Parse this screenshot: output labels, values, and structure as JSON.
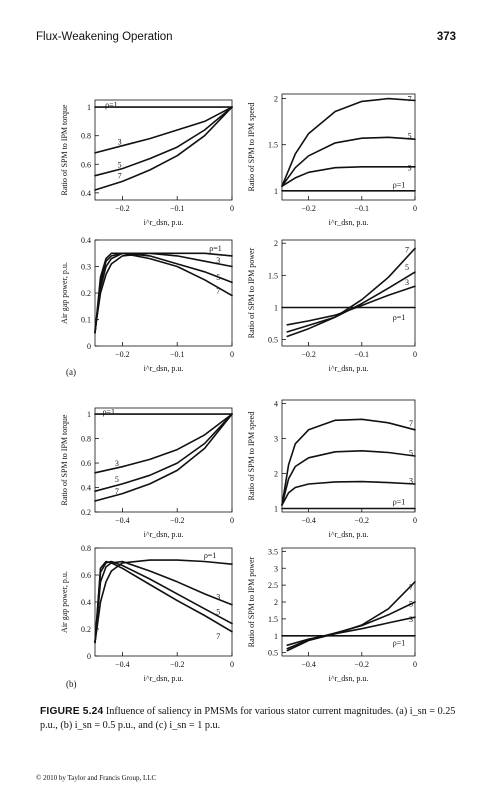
{
  "header": {
    "title": "Flux-Weakening Operation",
    "page_number": "373"
  },
  "panel_labels": {
    "a": "(a)",
    "b": "(b)"
  },
  "caption": {
    "label": "FIGURE 5.24",
    "text": "Influence of saliency in PMSMs for various stator current magnitudes. (a) i_sn = 0.25 p.u., (b) i_sn = 0.5 p.u., and (c) i_sn = 1 p.u."
  },
  "footer": "© 2010 by Taylor and Francis Group, LLC",
  "chart_data": [
    {
      "id": "a-torque",
      "type": "line",
      "ylabel": "Ratio of SPM to IPM torque",
      "xlabel": "i^r_dsn, p.u.",
      "xlim": [
        -0.25,
        0
      ],
      "ylim": [
        0.35,
        1.05
      ],
      "xticks": [
        -0.2,
        -0.1,
        0
      ],
      "xtick_labels": [
        "−0.2",
        "−0.1",
        "0"
      ],
      "yticks": [
        0.4,
        0.6,
        0.8,
        1
      ],
      "ytick_labels": [
        "0.4",
        "0.6",
        "0.8",
        "1"
      ],
      "series": [
        {
          "name": "ρ=1",
          "x": [
            -0.25,
            0
          ],
          "y": [
            1,
            1
          ]
        },
        {
          "name": "3",
          "x": [
            -0.25,
            -0.2,
            -0.15,
            -0.1,
            -0.05,
            0
          ],
          "y": [
            0.68,
            0.73,
            0.78,
            0.84,
            0.9,
            1
          ]
        },
        {
          "name": "5",
          "x": [
            -0.25,
            -0.2,
            -0.15,
            -0.1,
            -0.05,
            0
          ],
          "y": [
            0.52,
            0.57,
            0.64,
            0.72,
            0.84,
            1
          ]
        },
        {
          "name": "7",
          "x": [
            -0.25,
            -0.2,
            -0.15,
            -0.1,
            -0.05,
            0
          ],
          "y": [
            0.42,
            0.48,
            0.56,
            0.66,
            0.8,
            1
          ]
        }
      ],
      "labels": [
        {
          "text": "ρ=1",
          "x": -0.22,
          "y": 1.02
        },
        {
          "text": "3",
          "x": -0.205,
          "y": 0.76
        },
        {
          "text": "5",
          "x": -0.205,
          "y": 0.6
        },
        {
          "text": "7",
          "x": -0.205,
          "y": 0.52
        }
      ]
    },
    {
      "id": "a-speed",
      "type": "line",
      "ylabel": "Ratio of SPM to IPM speed",
      "xlabel": "i^r_dsn, p.u.",
      "xlim": [
        -0.25,
        0
      ],
      "ylim": [
        0.9,
        2.05
      ],
      "xticks": [
        -0.2,
        -0.1,
        0
      ],
      "xtick_labels": [
        "−0.2",
        "−0.1",
        "0"
      ],
      "yticks": [
        1,
        1.5,
        2
      ],
      "ytick_labels": [
        "1",
        "1.5",
        "2"
      ],
      "series": [
        {
          "name": "ρ=1",
          "x": [
            -0.25,
            0
          ],
          "y": [
            1,
            1
          ]
        },
        {
          "name": "3",
          "x": [
            -0.25,
            -0.225,
            -0.2,
            -0.15,
            -0.1,
            -0.05,
            0
          ],
          "y": [
            1.05,
            1.14,
            1.2,
            1.25,
            1.26,
            1.26,
            1.26
          ]
        },
        {
          "name": "5",
          "x": [
            -0.25,
            -0.225,
            -0.2,
            -0.15,
            -0.1,
            -0.05,
            0
          ],
          "y": [
            1.05,
            1.25,
            1.38,
            1.52,
            1.57,
            1.58,
            1.56
          ]
        },
        {
          "name": "7",
          "x": [
            -0.25,
            -0.225,
            -0.2,
            -0.15,
            -0.1,
            -0.05,
            0
          ],
          "y": [
            1.05,
            1.4,
            1.62,
            1.86,
            1.97,
            2.0,
            1.98
          ]
        }
      ],
      "labels": [
        {
          "text": "7",
          "x": -0.01,
          "y": 2.0
        },
        {
          "text": "5",
          "x": -0.01,
          "y": 1.6
        },
        {
          "text": "3",
          "x": -0.01,
          "y": 1.25
        },
        {
          "text": "ρ=1",
          "x": -0.03,
          "y": 1.07
        }
      ]
    },
    {
      "id": "a-power",
      "type": "line",
      "ylabel": "Air gap power, p.u.",
      "xlabel": "i^r_dsn, p.u.",
      "xlim": [
        -0.25,
        0
      ],
      "ylim": [
        0,
        0.4
      ],
      "xticks": [
        -0.2,
        -0.1,
        0
      ],
      "xtick_labels": [
        "−0.2",
        "−0.1",
        "0"
      ],
      "yticks": [
        0,
        0.1,
        0.2,
        0.3,
        0.4
      ],
      "ytick_labels": [
        "0",
        "0.1",
        "0.2",
        "0.3",
        "0.4"
      ],
      "series": [
        {
          "name": "ρ=1",
          "x": [
            -0.25,
            -0.24,
            -0.23,
            -0.22,
            -0.2,
            -0.15,
            -0.1,
            -0.05,
            0
          ],
          "y": [
            0.06,
            0.2,
            0.27,
            0.31,
            0.34,
            0.35,
            0.35,
            0.35,
            0.34
          ]
        },
        {
          "name": "3",
          "x": [
            -0.25,
            -0.24,
            -0.23,
            -0.22,
            -0.2,
            -0.15,
            -0.1,
            -0.05,
            0
          ],
          "y": [
            0.05,
            0.22,
            0.3,
            0.33,
            0.35,
            0.35,
            0.34,
            0.32,
            0.3
          ]
        },
        {
          "name": "5",
          "x": [
            -0.25,
            -0.24,
            -0.23,
            -0.22,
            -0.2,
            -0.15,
            -0.1,
            -0.05,
            0
          ],
          "y": [
            0.05,
            0.24,
            0.32,
            0.34,
            0.35,
            0.34,
            0.31,
            0.28,
            0.24
          ]
        },
        {
          "name": "7",
          "x": [
            -0.25,
            -0.24,
            -0.23,
            -0.22,
            -0.2,
            -0.15,
            -0.1,
            -0.05,
            0
          ],
          "y": [
            0.05,
            0.26,
            0.33,
            0.35,
            0.35,
            0.33,
            0.3,
            0.25,
            0.19
          ]
        }
      ],
      "labels": [
        {
          "text": "ρ=1",
          "x": -0.03,
          "y": 0.37
        },
        {
          "text": "3",
          "x": -0.025,
          "y": 0.325
        },
        {
          "text": "5",
          "x": -0.025,
          "y": 0.26
        },
        {
          "text": "7",
          "x": -0.025,
          "y": 0.21
        }
      ]
    },
    {
      "id": "a-power-ratio",
      "type": "line",
      "ylabel": "Ratio of SPM to IPM power",
      "xlabel": "i^r_dsn, p.u.",
      "xlim": [
        -0.25,
        0
      ],
      "ylim": [
        0.4,
        2.05
      ],
      "xticks": [
        -0.2,
        -0.1,
        0
      ],
      "xtick_labels": [
        "−0.2",
        "−0.1",
        "0"
      ],
      "yticks": [
        0.5,
        1,
        1.5,
        2
      ],
      "ytick_labels": [
        "0.5",
        "1",
        "1.5",
        "2"
      ],
      "series": [
        {
          "name": "ρ=1",
          "x": [
            -0.25,
            0
          ],
          "y": [
            1,
            1
          ]
        },
        {
          "name": "3",
          "x": [
            -0.24,
            -0.2,
            -0.15,
            -0.1,
            -0.05,
            0
          ],
          "y": [
            0.73,
            0.79,
            0.88,
            1.03,
            1.19,
            1.33
          ]
        },
        {
          "name": "5",
          "x": [
            -0.24,
            -0.2,
            -0.15,
            -0.1,
            -0.05,
            0
          ],
          "y": [
            0.62,
            0.72,
            0.85,
            1.06,
            1.3,
            1.55
          ]
        },
        {
          "name": "7",
          "x": [
            -0.24,
            -0.2,
            -0.15,
            -0.1,
            -0.05,
            0
          ],
          "y": [
            0.55,
            0.67,
            0.85,
            1.12,
            1.47,
            1.92
          ]
        }
      ],
      "labels": [
        {
          "text": "7",
          "x": -0.015,
          "y": 1.9
        },
        {
          "text": "5",
          "x": -0.015,
          "y": 1.63
        },
        {
          "text": "3",
          "x": -0.015,
          "y": 1.4
        },
        {
          "text": "ρ=1",
          "x": -0.03,
          "y": 0.85
        }
      ]
    },
    {
      "id": "b-torque",
      "type": "line",
      "ylabel": "Ratio of SPM to IPM torque",
      "xlabel": "i^r_dsn, p.u.",
      "xlim": [
        -0.5,
        0
      ],
      "ylim": [
        0.2,
        1.05
      ],
      "xticks": [
        -0.4,
        -0.2,
        0
      ],
      "xtick_labels": [
        "−0.4",
        "−0.2",
        "0"
      ],
      "yticks": [
        0.2,
        0.4,
        0.6,
        0.8,
        1
      ],
      "ytick_labels": [
        "0.2",
        "0.4",
        "0.6",
        "0.8",
        "1"
      ],
      "series": [
        {
          "name": "ρ=1",
          "x": [
            -0.5,
            0
          ],
          "y": [
            1,
            1
          ]
        },
        {
          "name": "3",
          "x": [
            -0.5,
            -0.4,
            -0.3,
            -0.2,
            -0.1,
            0
          ],
          "y": [
            0.52,
            0.57,
            0.63,
            0.71,
            0.83,
            1
          ]
        },
        {
          "name": "5",
          "x": [
            -0.5,
            -0.4,
            -0.3,
            -0.2,
            -0.1,
            0
          ],
          "y": [
            0.37,
            0.43,
            0.5,
            0.6,
            0.76,
            1
          ]
        },
        {
          "name": "7",
          "x": [
            -0.5,
            -0.4,
            -0.3,
            -0.2,
            -0.1,
            0
          ],
          "y": [
            0.29,
            0.35,
            0.43,
            0.54,
            0.72,
            1
          ]
        }
      ],
      "labels": [
        {
          "text": "ρ=1",
          "x": -0.45,
          "y": 1.02
        },
        {
          "text": "3",
          "x": -0.42,
          "y": 0.6
        },
        {
          "text": "5",
          "x": -0.42,
          "y": 0.47
        },
        {
          "text": "7",
          "x": -0.42,
          "y": 0.37
        }
      ]
    },
    {
      "id": "b-speed",
      "type": "line",
      "ylabel": "Ratio of SPM to IPM speed",
      "xlabel": "i^r_dsn, p.u.",
      "xlim": [
        -0.5,
        0
      ],
      "ylim": [
        0.9,
        4.1
      ],
      "xticks": [
        -0.4,
        -0.2,
        0
      ],
      "xtick_labels": [
        "−0.4",
        "−0.2",
        "0"
      ],
      "yticks": [
        1,
        2,
        3,
        4
      ],
      "ytick_labels": [
        "1",
        "2",
        "3",
        "4"
      ],
      "series": [
        {
          "name": "ρ=1",
          "x": [
            -0.5,
            0
          ],
          "y": [
            1,
            1
          ]
        },
        {
          "name": "3",
          "x": [
            -0.5,
            -0.475,
            -0.45,
            -0.4,
            -0.3,
            -0.2,
            -0.1,
            0
          ],
          "y": [
            1.1,
            1.45,
            1.6,
            1.7,
            1.76,
            1.77,
            1.74,
            1.7
          ]
        },
        {
          "name": "5",
          "x": [
            -0.5,
            -0.475,
            -0.45,
            -0.4,
            -0.3,
            -0.2,
            -0.1,
            0
          ],
          "y": [
            1.1,
            1.85,
            2.2,
            2.45,
            2.62,
            2.65,
            2.6,
            2.5
          ]
        },
        {
          "name": "7",
          "x": [
            -0.5,
            -0.475,
            -0.45,
            -0.4,
            -0.3,
            -0.2,
            -0.1,
            0
          ],
          "y": [
            1.1,
            2.25,
            2.85,
            3.25,
            3.52,
            3.55,
            3.45,
            3.25
          ]
        }
      ],
      "labels": [
        {
          "text": "7",
          "x": -0.015,
          "y": 3.45
        },
        {
          "text": "5",
          "x": -0.015,
          "y": 2.6
        },
        {
          "text": "3",
          "x": -0.015,
          "y": 1.8
        },
        {
          "text": "ρ=1",
          "x": -0.06,
          "y": 1.2
        }
      ]
    },
    {
      "id": "b-power",
      "type": "line",
      "ylabel": "Air gap power, p.u.",
      "xlabel": "i^r_dsn, p.u.",
      "xlim": [
        -0.5,
        0
      ],
      "ylim": [
        0,
        0.8
      ],
      "xticks": [
        -0.4,
        -0.2,
        0
      ],
      "xtick_labels": [
        "−0.4",
        "−0.2",
        "0"
      ],
      "yticks": [
        0,
        0.2,
        0.4,
        0.6,
        0.8
      ],
      "ytick_labels": [
        "0",
        "0.2",
        "0.4",
        "0.6",
        "0.8"
      ],
      "series": [
        {
          "name": "ρ=1",
          "x": [
            -0.5,
            -0.48,
            -0.46,
            -0.44,
            -0.4,
            -0.3,
            -0.2,
            -0.1,
            0
          ],
          "y": [
            0.1,
            0.4,
            0.55,
            0.63,
            0.69,
            0.71,
            0.71,
            0.7,
            0.68
          ]
        },
        {
          "name": "3",
          "x": [
            -0.5,
            -0.48,
            -0.46,
            -0.44,
            -0.4,
            -0.3,
            -0.2,
            -0.1,
            0
          ],
          "y": [
            0.1,
            0.55,
            0.66,
            0.69,
            0.7,
            0.63,
            0.55,
            0.46,
            0.38
          ]
        },
        {
          "name": "5",
          "x": [
            -0.5,
            -0.48,
            -0.46,
            -0.44,
            -0.4,
            -0.3,
            -0.2,
            -0.1,
            0
          ],
          "y": [
            0.1,
            0.62,
            0.69,
            0.7,
            0.67,
            0.57,
            0.46,
            0.35,
            0.24
          ]
        },
        {
          "name": "7",
          "x": [
            -0.5,
            -0.48,
            -0.46,
            -0.44,
            -0.4,
            -0.3,
            -0.2,
            -0.1,
            0
          ],
          "y": [
            0.1,
            0.65,
            0.7,
            0.69,
            0.65,
            0.53,
            0.41,
            0.3,
            0.18
          ]
        }
      ],
      "labels": [
        {
          "text": "ρ=1",
          "x": -0.08,
          "y": 0.75
        },
        {
          "text": "3",
          "x": -0.05,
          "y": 0.44
        },
        {
          "text": "5",
          "x": -0.05,
          "y": 0.33
        },
        {
          "text": "7",
          "x": -0.05,
          "y": 0.15
        }
      ]
    },
    {
      "id": "b-power-ratio",
      "type": "line",
      "ylabel": "Ratio of SPM to IPM power",
      "xlabel": "i^r_dsn, p.u.",
      "xlim": [
        -0.5,
        0
      ],
      "ylim": [
        0.4,
        3.6
      ],
      "xticks": [
        -0.4,
        -0.2,
        0
      ],
      "xtick_labels": [
        "−0.4",
        "−0.2",
        "0"
      ],
      "yticks": [
        0.5,
        1,
        1.5,
        2,
        2.5,
        3,
        3.5
      ],
      "ytick_labels": [
        "0.5",
        "1",
        "1.5",
        "2",
        "2.5",
        "3",
        "3.5"
      ],
      "series": [
        {
          "name": "ρ=1",
          "x": [
            -0.5,
            0
          ],
          "y": [
            1,
            1
          ]
        },
        {
          "name": "3",
          "x": [
            -0.48,
            -0.4,
            -0.3,
            -0.2,
            -0.1,
            0
          ],
          "y": [
            0.72,
            0.9,
            1.06,
            1.21,
            1.38,
            1.55
          ]
        },
        {
          "name": "5",
          "x": [
            -0.48,
            -0.4,
            -0.3,
            -0.2,
            -0.1,
            0
          ],
          "y": [
            0.62,
            0.88,
            1.08,
            1.3,
            1.62,
            2.0
          ]
        },
        {
          "name": "7",
          "x": [
            -0.48,
            -0.4,
            -0.3,
            -0.2,
            -0.1,
            0
          ],
          "y": [
            0.56,
            0.86,
            1.06,
            1.32,
            1.8,
            2.6
          ]
        }
      ],
      "labels": [
        {
          "text": "7",
          "x": -0.015,
          "y": 2.45
        },
        {
          "text": "5",
          "x": -0.015,
          "y": 1.95
        },
        {
          "text": "3",
          "x": -0.015,
          "y": 1.5
        },
        {
          "text": "ρ=1",
          "x": -0.06,
          "y": 0.8
        }
      ]
    }
  ]
}
